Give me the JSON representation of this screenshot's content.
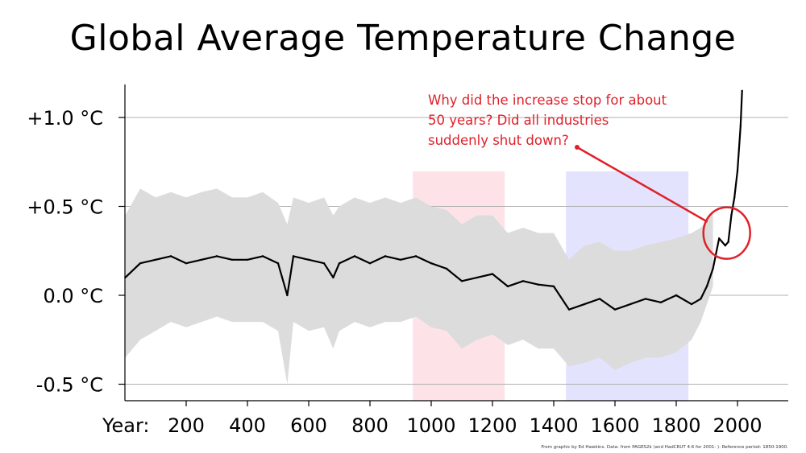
{
  "chart_data": {
    "type": "line",
    "title": "Global Average Temperature Change",
    "xlabel": "Year:",
    "ylabel": "",
    "xlim": [
      0,
      2160
    ],
    "ylim": [
      -0.6,
      1.2
    ],
    "x_ticks": [
      200,
      400,
      600,
      800,
      1000,
      1200,
      1400,
      1600,
      1800,
      2000
    ],
    "y_ticks": [
      {
        "value": 1.0,
        "label": "+1.0 °C"
      },
      {
        "value": 0.5,
        "label": "+0.5 °C"
      },
      {
        "value": 0.0,
        "label": "0.0 °C"
      },
      {
        "value": -0.5,
        "label": "-0.5 °C"
      }
    ],
    "grid": "horizontal",
    "shaded_periods": [
      {
        "start": 940,
        "end": 1240,
        "color": "#fde3e7"
      },
      {
        "start": 1440,
        "end": 1840,
        "color": "#e3e3fd"
      }
    ],
    "series": [
      {
        "color": "#000000",
        "band_color": "#dcdcdc",
        "x": [
          1,
          50,
          100,
          150,
          200,
          250,
          300,
          350,
          400,
          450,
          500,
          530,
          550,
          600,
          650,
          680,
          700,
          750,
          800,
          850,
          900,
          950,
          1000,
          1050,
          1100,
          1150,
          1200,
          1250,
          1300,
          1350,
          1400,
          1450,
          1500,
          1550,
          1600,
          1650,
          1700,
          1750,
          1800,
          1850,
          1880,
          1900,
          1920,
          1940,
          1950,
          1960,
          1970,
          1980,
          1990,
          2000,
          2010,
          2015
        ],
        "y": [
          0.1,
          0.18,
          0.2,
          0.22,
          0.18,
          0.2,
          0.22,
          0.2,
          0.2,
          0.22,
          0.18,
          0.0,
          0.22,
          0.2,
          0.18,
          0.1,
          0.18,
          0.22,
          0.18,
          0.22,
          0.2,
          0.22,
          0.18,
          0.15,
          0.08,
          0.1,
          0.12,
          0.05,
          0.08,
          0.06,
          0.05,
          -0.08,
          -0.05,
          -0.02,
          -0.08,
          -0.05,
          -0.02,
          -0.04,
          0.0,
          -0.05,
          -0.02,
          0.05,
          0.15,
          0.32,
          0.3,
          0.28,
          0.3,
          0.45,
          0.55,
          0.7,
          0.95,
          1.15
        ],
        "band_upper": [
          0.45,
          0.6,
          0.55,
          0.58,
          0.55,
          0.58,
          0.6,
          0.55,
          0.55,
          0.58,
          0.52,
          0.4,
          0.55,
          0.52,
          0.55,
          0.45,
          0.5,
          0.55,
          0.52,
          0.55,
          0.52,
          0.55,
          0.5,
          0.48,
          0.4,
          0.45,
          0.45,
          0.35,
          0.38,
          0.35,
          0.35,
          0.2,
          0.28,
          0.3,
          0.25,
          0.25,
          0.28,
          0.3,
          0.32,
          0.35,
          0.38,
          0.42,
          0.48
        ],
        "band_lower": [
          -0.35,
          -0.25,
          -0.2,
          -0.15,
          -0.18,
          -0.15,
          -0.12,
          -0.15,
          -0.15,
          -0.15,
          -0.2,
          -0.5,
          -0.15,
          -0.2,
          -0.18,
          -0.3,
          -0.2,
          -0.15,
          -0.18,
          -0.15,
          -0.15,
          -0.12,
          -0.18,
          -0.2,
          -0.3,
          -0.25,
          -0.22,
          -0.28,
          -0.25,
          -0.3,
          -0.3,
          -0.4,
          -0.38,
          -0.35,
          -0.42,
          -0.38,
          -0.35,
          -0.35,
          -0.32,
          -0.25,
          -0.15,
          -0.05,
          0.05
        ]
      }
    ],
    "annotation": {
      "lines": [
        "Why did the increase stop for about",
        "50 years?  Did all industries",
        "suddenly shut down?"
      ],
      "color": "#e0202a",
      "circle_center": [
        1965,
        0.35
      ]
    }
  },
  "credit": "From graphic by Ed Hawkins.   Data: from PAGES2k (and HadCRUT 4.6 for 2001- ).   Reference period: 1850-1900."
}
